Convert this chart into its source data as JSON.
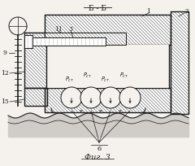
{
  "title": "Б - Б",
  "fig_label": "Фиг. 3",
  "bg": "#f5f2ee",
  "lc": "#1a1a1a",
  "hatch_lc": "#555555",
  "white": "#ffffff"
}
